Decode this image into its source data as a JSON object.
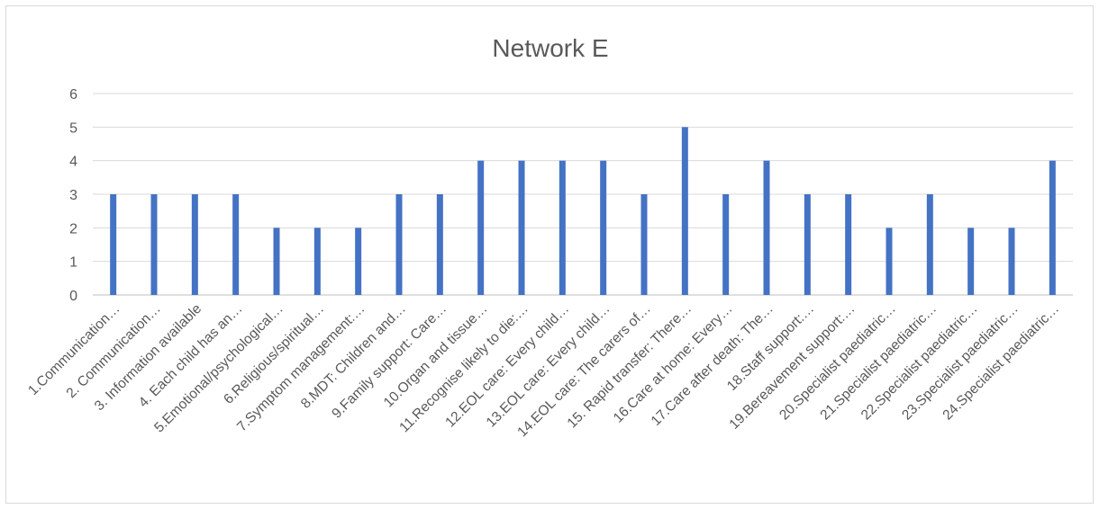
{
  "chart_data": {
    "type": "bar",
    "title": "Network E",
    "xlabel": "",
    "ylabel": "",
    "ylim": [
      0,
      6
    ],
    "yticks": [
      "0",
      "1",
      "2",
      "3",
      "4",
      "5",
      "6"
    ],
    "grid": true,
    "legend": "none",
    "bar_color": "#4472c4",
    "categories": [
      "1.Communication…",
      "2. Communication…",
      "3. Information available",
      "4. Each child has an…",
      "5.Emotional/psychological…",
      "6.Religious/spiritual…",
      "7.Symptom management:…",
      "8.MDT: Children and…",
      "9.Family support: Care…",
      "10.Organ and tissue…",
      "11.Recognise likely to die:…",
      "12.EOL care: Every child…",
      "13.EOL care: Every child…",
      "14.EOL care: The carers of…",
      "15. Rapid transfer: There…",
      "16.Care at home: Every…",
      "17.Care after death: The…",
      "18.Staff support:…",
      "19.Bereavement support:…",
      "20.Specialist paediatric…",
      "21.Specialist paediatric…",
      "22.Specialist paediatric…",
      "23.Specialist paediatric…",
      "24.Specialist paediatric…"
    ],
    "values": [
      3,
      3,
      3,
      3,
      2,
      2,
      2,
      3,
      3,
      4,
      4,
      4,
      4,
      3,
      5,
      3,
      4,
      3,
      3,
      2,
      3,
      2,
      2,
      4
    ]
  }
}
